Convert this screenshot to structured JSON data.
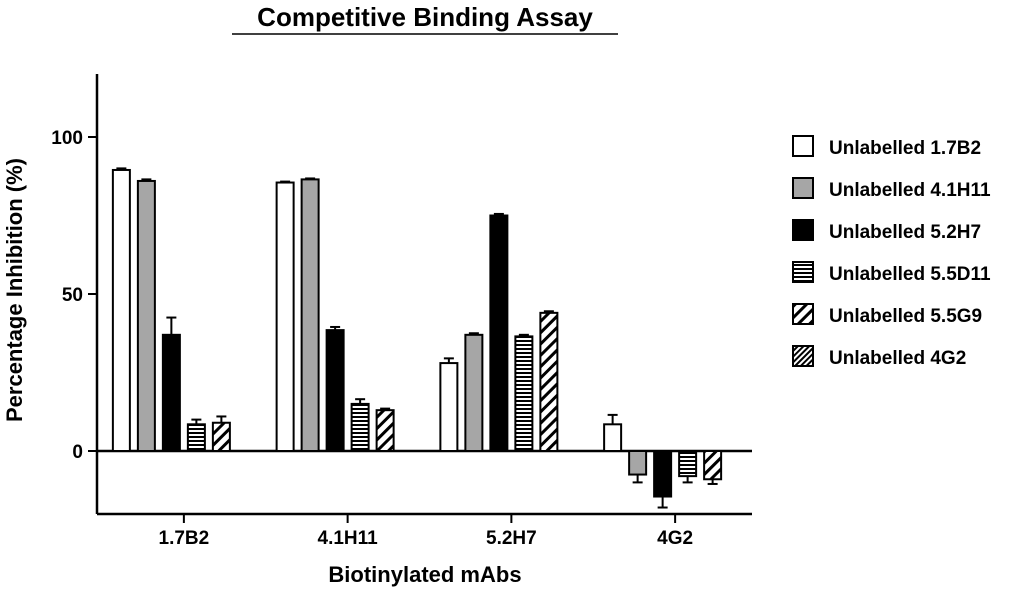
{
  "chart_data": {
    "type": "bar",
    "title": "Competitive Binding Assay",
    "xlabel": "Biotinylated mAbs",
    "ylabel": "Percentage Inhibition (%)",
    "ylim": [
      -20,
      120
    ],
    "yticks": [
      "0",
      "50",
      "100"
    ],
    "ytick_values": [
      0,
      50,
      100
    ],
    "categories": [
      "1.7B2",
      "4.1H11",
      "5.2H7",
      "4G2"
    ],
    "legend_position": "right",
    "series": [
      {
        "name": "Unlabelled 1.7B2",
        "pattern": "white",
        "values": [
          89.5,
          85.5,
          28,
          8.5
        ],
        "errors": [
          0.5,
          0.3,
          1.5,
          3
        ]
      },
      {
        "name": "Unlabelled 4.1H11",
        "pattern": "gray",
        "values": [
          86,
          86.5,
          37,
          -7.5
        ],
        "errors": [
          0.5,
          0.3,
          0.5,
          2.5
        ]
      },
      {
        "name": "Unlabelled 5.2H7",
        "pattern": "black",
        "values": [
          37,
          38.5,
          75,
          -14.5
        ],
        "errors": [
          5.5,
          1,
          0.5,
          3.5
        ]
      },
      {
        "name": "Unlabelled 5.5D11",
        "pattern": "hlines",
        "values": [
          8.5,
          15,
          36.5,
          -8
        ],
        "errors": [
          1.5,
          1.5,
          0.5,
          2
        ]
      },
      {
        "name": "Unlabelled 5.5G9",
        "pattern": "diag",
        "values": [
          9,
          13,
          44,
          -9
        ],
        "errors": [
          2,
          0.5,
          0.5,
          1.5
        ]
      },
      {
        "name": "Unlabelled 4G2",
        "pattern": "diagdense",
        "values": [
          0,
          0,
          0,
          0
        ],
        "errors": [
          0,
          0,
          0,
          0
        ]
      }
    ],
    "colors": {
      "gray": "#a6a6a6",
      "black": "#000000",
      "white": "#ffffff"
    }
  }
}
